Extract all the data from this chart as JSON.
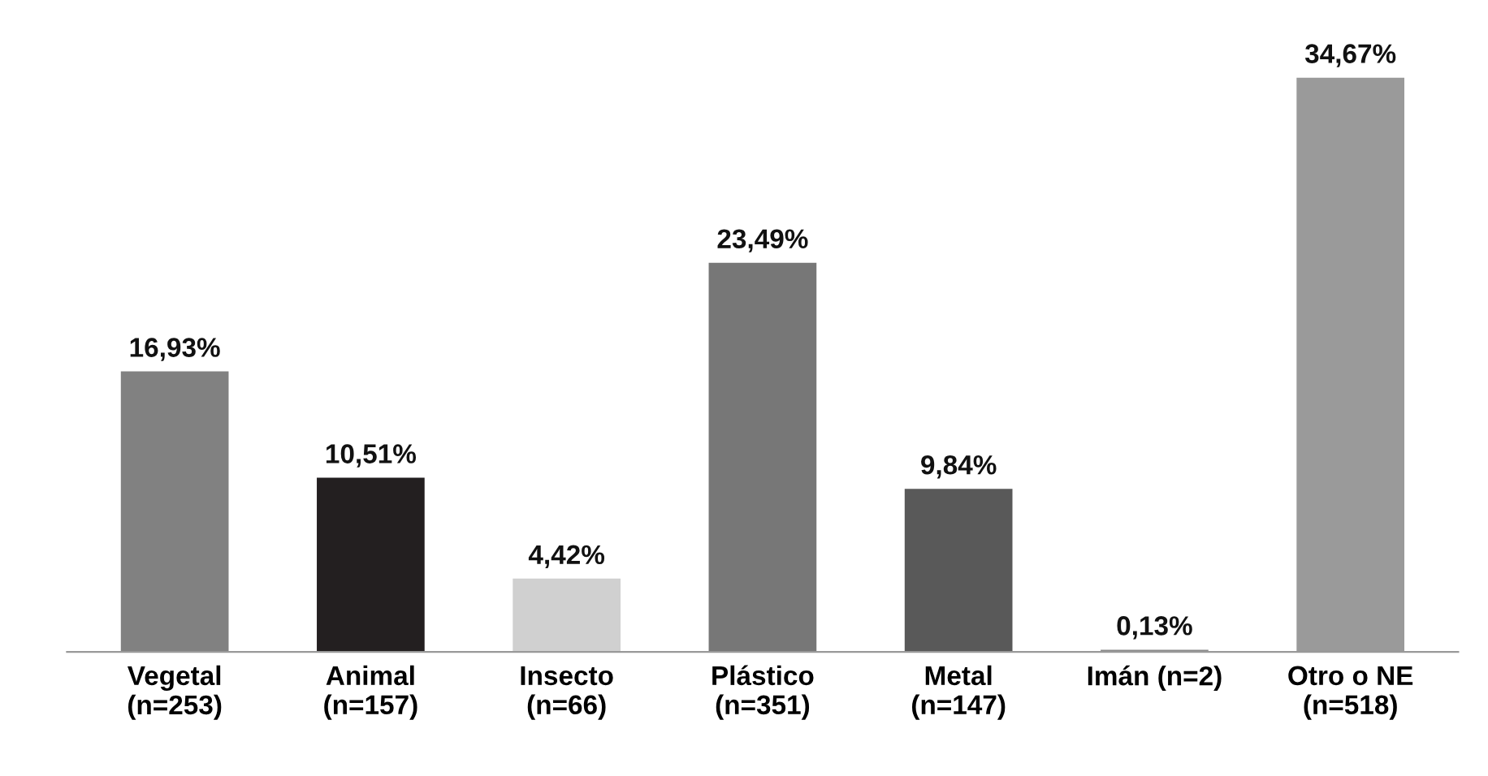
{
  "chart_data": {
    "type": "bar",
    "categories": [
      "Vegetal\n(n=253)",
      "Animal\n(n=157)",
      "Insecto\n(n=66)",
      "Plástico\n(n=351)",
      "Metal\n(n=147)",
      "Imán (n=2)",
      "Otro o NE\n(n=518)"
    ],
    "values": [
      16.93,
      10.51,
      4.42,
      23.49,
      9.84,
      0.13,
      34.67
    ],
    "colors": [
      "#818181",
      "#231f20",
      "#d0d0d0",
      "#777777",
      "#595959",
      "#8a8a8a",
      "#9a9a9a"
    ],
    "value_labels": [
      "16,93%",
      "10,51%",
      "4,42%",
      "23,49%",
      "9,84%",
      "0,13%",
      "34,67%"
    ],
    "grid": false,
    "legend": false
  }
}
